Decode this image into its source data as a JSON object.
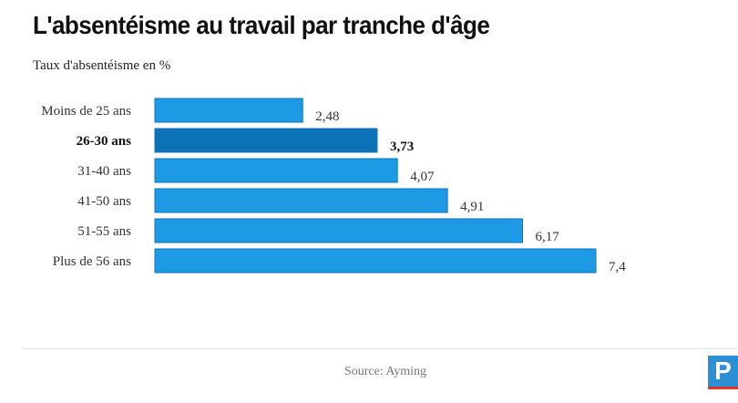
{
  "title": "L'absentéisme au travail par tranche d'âge",
  "subtitle": "Taux d'absentéisme en %",
  "source": "Source: Ayming",
  "logo_letter": "P",
  "colors": {
    "bar": "#1e9ae4",
    "bar_highlight": "#0a72b5",
    "bar_border": "#0d74b8"
  },
  "chart_data": {
    "type": "bar",
    "orientation": "horizontal",
    "title": "L'absentéisme au travail par tranche d'âge",
    "subtitle": "Taux d'absentéisme en %",
    "categories": [
      "Moins de 25 ans",
      "26-30 ans",
      "31-40 ans",
      "41-50 ans",
      "51-55 ans",
      "Plus de 56 ans"
    ],
    "values": [
      2.48,
      3.73,
      4.07,
      4.91,
      6.17,
      7.4
    ],
    "value_labels": [
      "2,48",
      "3,73",
      "4,07",
      "4,91",
      "6,17",
      "7,4"
    ],
    "highlighted": "26-30 ans",
    "xlim": [
      0,
      7.4
    ],
    "grid": false,
    "legend": "none"
  }
}
